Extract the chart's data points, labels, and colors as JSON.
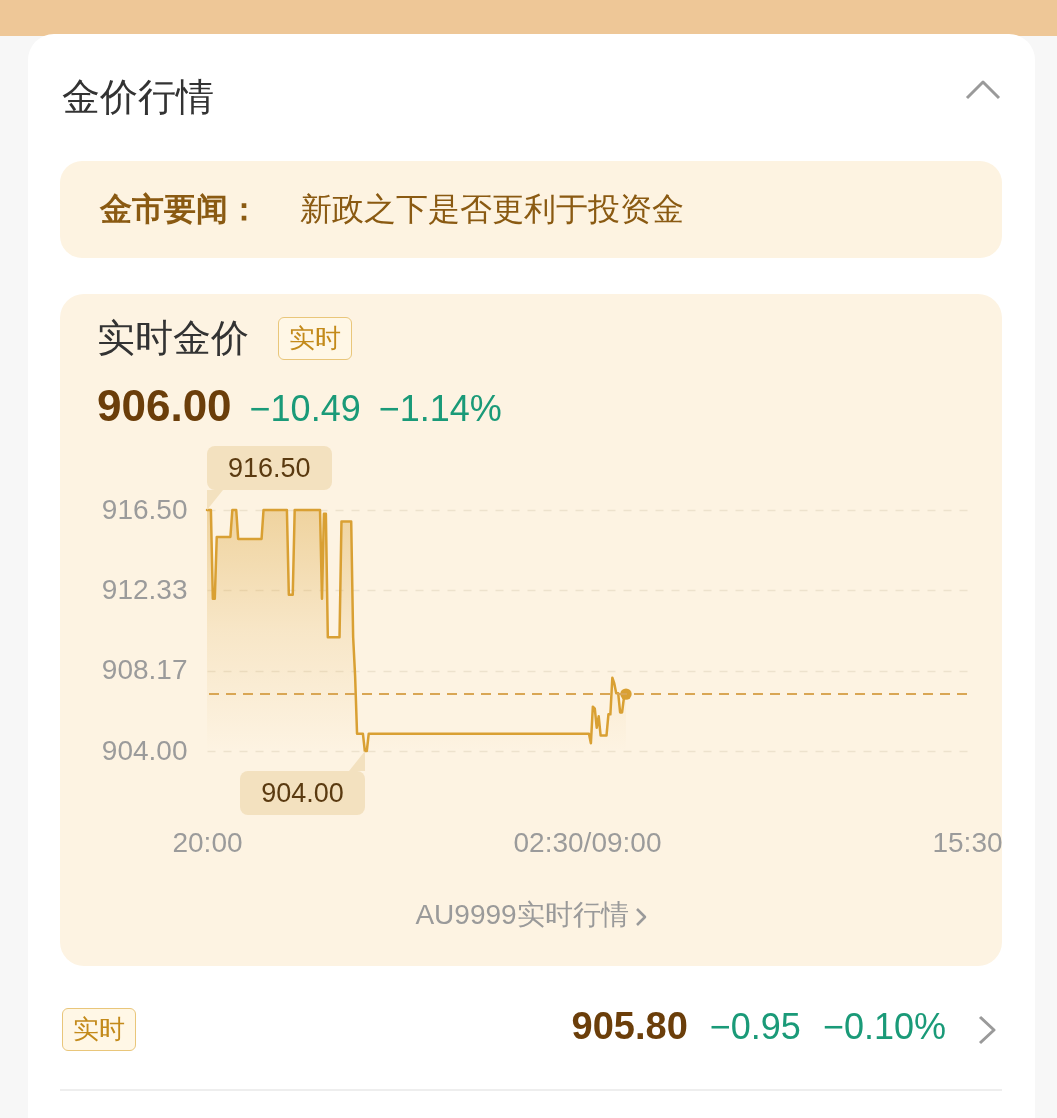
{
  "chart_data": {
    "type": "area",
    "title": "金价行情",
    "subtitle": "实时金价",
    "annotations": [
      "金市要闻：",
      "新政之下是否更利于投资金",
      "实时",
      "906.00",
      "−10.49",
      "−1.14%",
      {
        "text": "916.50",
        "y": 916.5
      },
      {
        "text": "904.00",
        "y": 904
      },
      "AU9999实时行情",
      "实时",
      "905.80",
      "−0.95",
      "−0.10%"
    ],
    "categories": [
      "20:00",
      null,
      null,
      null,
      null,
      null,
      null,
      null,
      null,
      null,
      null,
      null,
      null,
      null,
      null,
      null,
      null,
      null,
      null,
      null,
      null,
      null,
      null,
      null,
      null,
      null,
      null,
      null,
      null,
      null,
      null,
      null,
      null,
      null,
      null,
      null,
      null,
      null,
      null,
      null,
      null,
      null,
      null,
      null,
      null,
      null,
      null,
      null,
      null,
      null,
      null,
      null,
      null,
      null,
      null,
      null,
      null,
      null,
      null,
      null,
      null,
      null,
      null,
      null,
      null,
      null,
      null,
      null,
      null,
      null,
      null,
      null,
      null,
      null,
      null,
      null,
      null,
      null,
      null,
      null,
      null,
      null,
      null,
      null,
      null,
      null,
      null,
      null,
      null,
      null,
      null,
      null,
      null,
      null,
      null,
      null,
      null,
      null,
      null,
      null,
      null,
      null,
      null,
      null,
      null,
      null,
      null,
      null,
      null,
      null,
      null,
      null,
      null,
      null,
      null,
      null,
      null,
      null,
      null,
      null,
      null,
      null,
      null,
      null,
      null,
      null,
      null,
      null,
      null,
      null,
      null,
      null,
      null,
      null,
      null,
      null,
      null,
      null,
      null,
      null,
      null,
      null,
      null,
      null,
      null,
      null,
      null,
      null,
      null,
      null,
      null,
      null,
      null,
      null,
      null,
      null,
      null,
      null,
      null,
      null,
      null,
      null,
      null,
      null,
      null,
      null,
      null,
      null,
      null,
      null,
      null,
      null,
      null,
      null,
      null,
      null,
      null,
      null,
      null,
      null,
      null,
      null,
      null,
      null,
      null,
      null,
      null,
      null,
      null,
      null,
      null,
      null,
      null,
      null,
      null,
      "02:30/09:00",
      null,
      null,
      null,
      null,
      null,
      null,
      null,
      null,
      null,
      null,
      null,
      null,
      null,
      null,
      null,
      null,
      null,
      null,
      null,
      null,
      null,
      null,
      null,
      null,
      null,
      null,
      null,
      null,
      null,
      null,
      null,
      null,
      null,
      null,
      null,
      null,
      null,
      null,
      null,
      null,
      null,
      null,
      null,
      null,
      null,
      null,
      null,
      null,
      null,
      null,
      null,
      null,
      null,
      null,
      null,
      null,
      null,
      null,
      null,
      null,
      null,
      null,
      null,
      null,
      null,
      null,
      null,
      null,
      null,
      null,
      null,
      null,
      null,
      null,
      null,
      null,
      null,
      null,
      null,
      null,
      null,
      null,
      null,
      null,
      null,
      null,
      null,
      null,
      null,
      null,
      null,
      null,
      null,
      null,
      null,
      null,
      null,
      null,
      null,
      null,
      null,
      null,
      null,
      null,
      null,
      null,
      null,
      null,
      null,
      null,
      null,
      null,
      null,
      null,
      null,
      null,
      null,
      null,
      null,
      null,
      null,
      null,
      null,
      null,
      null,
      null,
      null,
      null,
      null,
      null,
      null,
      null,
      null,
      null,
      null,
      null,
      null,
      null,
      null,
      null,
      null,
      null,
      null,
      null,
      null,
      null,
      null,
      null,
      null,
      null,
      null,
      null,
      null,
      null,
      null,
      null,
      null,
      null,
      null,
      null,
      null,
      null,
      null,
      null,
      null,
      null,
      null,
      null,
      null,
      null,
      null,
      null,
      null,
      null,
      null,
      null,
      null,
      null,
      null,
      null,
      null,
      null,
      null,
      null,
      null,
      null,
      null,
      null,
      null,
      null,
      null,
      null,
      null,
      null,
      "15:30"
    ],
    "series": [
      {
        "color": "#d9a033",
        "values": [
          916.5,
          916.5,
          916.5,
          911.9,
          911.9,
          915.1,
          915.1,
          915.1,
          915.1,
          915.1,
          915.1,
          915.1,
          915.1,
          916.5,
          916.5,
          916.5,
          915.0,
          915.0,
          915.0,
          915.0,
          915.0,
          915.0,
          915.0,
          915.0,
          915.0,
          915.0,
          915.0,
          915.0,
          915.0,
          916.5,
          916.5,
          916.5,
          916.5,
          916.5,
          916.5,
          916.5,
          916.5,
          916.5,
          916.5,
          916.5,
          916.5,
          916.5,
          912.1,
          912.1,
          912.1,
          916.5,
          916.5,
          916.5,
          916.5,
          916.5,
          916.5,
          916.5,
          916.5,
          916.5,
          916.5,
          916.5,
          916.5,
          916.5,
          916.5,
          911.9,
          916.3,
          916.3,
          909.9,
          909.9,
          909.9,
          909.9,
          909.9,
          909.9,
          909.9,
          915.9,
          915.9,
          915.9,
          915.9,
          915.9,
          915.9,
          909.9,
          907.9,
          904.9,
          904.9,
          904.9,
          904.9,
          904.0,
          904.0,
          904.9,
          904.9,
          904.9,
          904.9,
          904.9,
          904.9,
          904.9,
          904.9,
          904.9,
          904.9,
          904.9,
          904.9,
          904.9,
          904.9,
          904.9,
          904.9,
          904.9,
          904.9,
          904.9,
          904.9,
          904.9,
          904.9,
          904.9,
          904.9,
          904.9,
          904.9,
          904.9,
          904.9,
          904.9,
          904.9,
          904.9,
          904.9,
          904.9,
          904.9,
          904.9,
          904.9,
          904.9,
          904.9,
          904.9,
          904.9,
          904.9,
          904.9,
          904.9,
          904.9,
          904.9,
          904.9,
          904.9,
          904.9,
          904.9,
          904.9,
          904.9,
          904.9,
          904.9,
          904.9,
          904.9,
          904.9,
          904.9,
          904.9,
          904.9,
          904.9,
          904.9,
          904.9,
          904.9,
          904.9,
          904.9,
          904.9,
          904.9,
          904.9,
          904.9,
          904.9,
          904.9,
          904.9,
          904.9,
          904.9,
          904.9,
          904.9,
          904.9,
          904.9,
          904.9,
          904.9,
          904.9,
          904.9,
          904.9,
          904.9,
          904.9,
          904.9,
          904.9,
          904.9,
          904.9,
          904.9,
          904.9,
          904.9,
          904.9,
          904.9,
          904.9,
          904.9,
          904.9,
          904.9,
          904.9,
          904.9,
          904.9,
          904.9,
          904.9,
          904.9,
          904.9,
          904.9,
          904.9,
          904.9,
          904.9,
          904.9,
          904.9,
          904.9,
          904.9,
          904.9,
          904.4,
          906.3,
          906.2,
          905.2,
          905.8,
          904.8,
          904.8,
          904.8,
          904.8,
          905.9,
          905.9,
          907.8,
          907.5,
          907.0,
          907.0,
          906.0,
          906.0,
          906.8,
          906.95,
          null,
          null,
          null,
          null,
          null,
          null,
          null,
          null,
          null,
          null,
          null,
          null,
          null,
          null,
          null,
          null,
          null,
          null,
          null,
          null,
          null,
          null,
          null,
          null,
          null,
          null,
          null,
          null,
          null,
          null,
          null,
          null,
          null,
          null,
          null,
          null,
          null,
          null,
          null,
          null,
          null,
          null,
          null,
          null,
          null,
          null,
          null,
          null,
          null,
          null,
          null,
          null,
          null,
          null,
          null,
          null,
          null,
          null,
          null,
          null,
          null,
          null,
          null,
          null,
          null,
          null,
          null,
          null,
          null,
          null,
          null,
          null,
          null,
          null,
          null,
          null,
          null,
          null,
          null,
          null,
          null,
          null,
          null,
          null,
          null,
          null,
          null,
          null,
          null,
          null,
          null,
          null,
          null,
          null,
          null,
          null,
          null,
          null,
          null,
          null,
          null,
          null,
          null,
          null,
          null,
          null,
          null,
          null,
          null,
          null,
          null,
          null,
          null,
          null,
          null,
          null,
          null,
          null,
          null,
          null,
          null,
          null,
          null,
          null,
          null,
          null,
          null,
          null,
          null,
          null,
          null,
          null,
          null,
          null,
          null,
          null,
          null,
          null,
          null,
          null,
          null,
          null,
          null,
          null,
          null,
          null,
          null,
          null,
          null,
          null,
          null,
          null,
          null,
          null,
          null,
          null,
          null,
          null,
          null,
          null,
          null,
          null,
          null,
          null,
          null,
          null,
          null,
          null,
          null,
          null,
          null,
          null,
          null,
          null,
          null
        ]
      },
      {
        "type": "scatter",
        "color": "#d9a033",
        "values": [
          null,
          null,
          null,
          null,
          null,
          null,
          null,
          null,
          null,
          null,
          null,
          null,
          null,
          null,
          null,
          null,
          null,
          null,
          null,
          null,
          null,
          null,
          null,
          null,
          null,
          null,
          null,
          null,
          null,
          null,
          null,
          null,
          null,
          null,
          null,
          null,
          null,
          null,
          null,
          null,
          null,
          null,
          null,
          null,
          null,
          null,
          null,
          null,
          null,
          null,
          null,
          null,
          null,
          null,
          null,
          null,
          null,
          null,
          null,
          null,
          null,
          null,
          null,
          null,
          null,
          null,
          null,
          null,
          null,
          null,
          null,
          null,
          null,
          null,
          null,
          null,
          null,
          null,
          null,
          null,
          null,
          null,
          null,
          null,
          null,
          null,
          null,
          null,
          null,
          null,
          null,
          null,
          null,
          null,
          null,
          null,
          null,
          null,
          null,
          null,
          null,
          null,
          null,
          null,
          null,
          null,
          null,
          null,
          null,
          null,
          null,
          null,
          null,
          null,
          null,
          null,
          null,
          null,
          null,
          null,
          null,
          null,
          null,
          null,
          null,
          null,
          null,
          null,
          null,
          null,
          null,
          null,
          null,
          null,
          null,
          null,
          null,
          null,
          null,
          null,
          null,
          null,
          null,
          null,
          null,
          null,
          null,
          null,
          null,
          null,
          null,
          null,
          null,
          null,
          null,
          null,
          null,
          null,
          null,
          null,
          null,
          null,
          null,
          null,
          null,
          null,
          null,
          null,
          null,
          null,
          null,
          null,
          null,
          null,
          null,
          null,
          null,
          null,
          null,
          null,
          null,
          null,
          null,
          null,
          null,
          null,
          null,
          null,
          null,
          null,
          null,
          null,
          null,
          null,
          null,
          null,
          null,
          null,
          null,
          null,
          null,
          null,
          null,
          null,
          null,
          null,
          null,
          null,
          null,
          null,
          null,
          null,
          null,
          null,
          null,
          906.95,
          null,
          null,
          null,
          null,
          null,
          null,
          null,
          null,
          null,
          null,
          null,
          null,
          null,
          null,
          null,
          null,
          null,
          null,
          null,
          null,
          null,
          null,
          null,
          null,
          null,
          null,
          null,
          null,
          null,
          null,
          null,
          null,
          null,
          null,
          null,
          null,
          null,
          null,
          null,
          null,
          null,
          null,
          null,
          null,
          null,
          null,
          null,
          null,
          null,
          null,
          null,
          null,
          null,
          null,
          null,
          null,
          null,
          null,
          null,
          null,
          null,
          null,
          null,
          null,
          null,
          null,
          null,
          null,
          null,
          null,
          null,
          null,
          null,
          null,
          null,
          null,
          null,
          null,
          null,
          null,
          null,
          null,
          null,
          null,
          null,
          null,
          null,
          null,
          null,
          null,
          null,
          null,
          null,
          null,
          null,
          null,
          null,
          null,
          null,
          null,
          null,
          null,
          null,
          null,
          null,
          null,
          null,
          null,
          null,
          null,
          null,
          null,
          null,
          null,
          null,
          null,
          null,
          null,
          null,
          null,
          null,
          null,
          null,
          null,
          null,
          null,
          null,
          null,
          null,
          null,
          null,
          null,
          null,
          null,
          null,
          null,
          null,
          null,
          null,
          null,
          null,
          null,
          null,
          null,
          null,
          null,
          null,
          null,
          null,
          null,
          null,
          null,
          null,
          null,
          null,
          null,
          null,
          null,
          null,
          null,
          null,
          null,
          null,
          null,
          null,
          null,
          null,
          null,
          null,
          null,
          null,
          null,
          null,
          null,
          null
        ]
      }
    ],
    "ylim": [
      904,
      916.5
    ],
    "yticks": [
      {
        "value": 916.5,
        "label": "916.50"
      },
      {
        "value": 912.33,
        "label": "912.33"
      },
      {
        "value": 908.17,
        "label": "908.17"
      },
      {
        "value": 904,
        "label": "904.00"
      }
    ],
    "grid": "y",
    "ref_lines": [
      {
        "axis": "y",
        "value": 906.95,
        "color": "#d9a654",
        "line_style": "dashed"
      }
    ]
  }
}
